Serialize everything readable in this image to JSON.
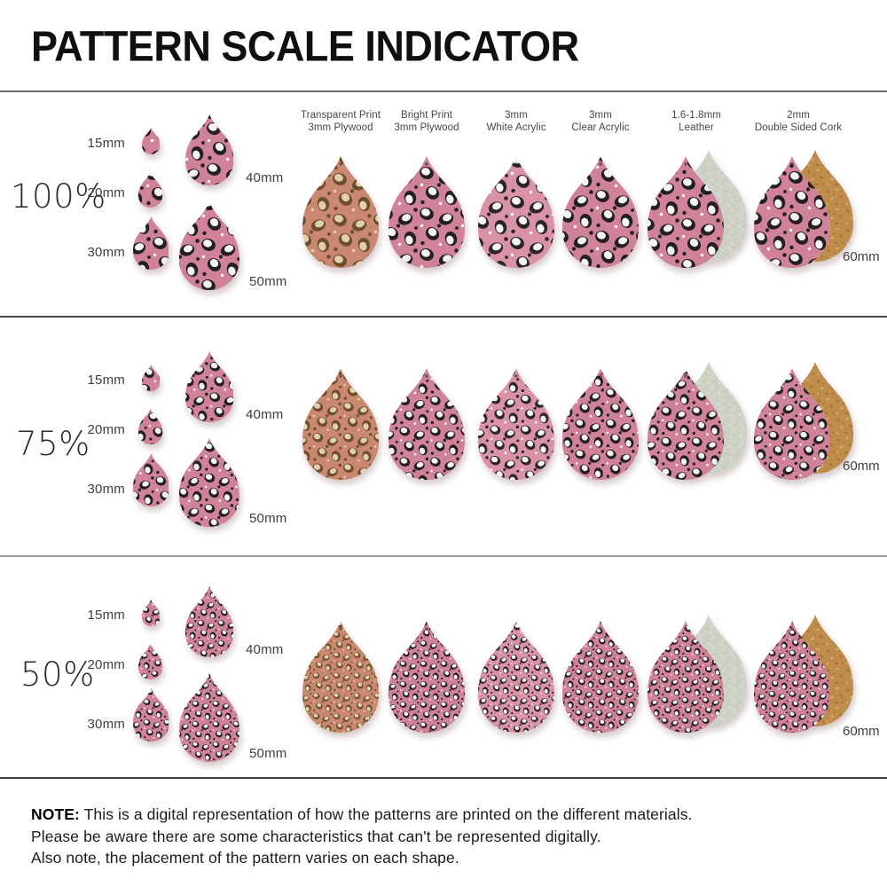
{
  "title": "PATTERN SCALE INDICATOR",
  "sections": [
    {
      "scale_label": "100%",
      "pattern_scale": 1
    },
    {
      "scale_label": "75%",
      "pattern_scale": 0.75
    },
    {
      "scale_label": "50%",
      "pattern_scale": 0.5
    }
  ],
  "size_samples": [
    {
      "label": "15mm",
      "mm": 15
    },
    {
      "label": "20mm",
      "mm": 20
    },
    {
      "label": "30mm",
      "mm": 30
    },
    {
      "label": "40mm",
      "mm": 40
    },
    {
      "label": "50mm",
      "mm": 50
    }
  ],
  "material_drop_size_label": "60mm",
  "material_columns": [
    {
      "label": [
        "Transparent Print",
        "3mm Plywood"
      ],
      "pattern": "wood",
      "backing": null
    },
    {
      "label": [
        "Bright Print",
        "3mm Plywood"
      ],
      "pattern": "pink",
      "backing": null
    },
    {
      "label": [
        "3mm",
        "White Acrylic"
      ],
      "pattern": "pinklight",
      "backing": null
    },
    {
      "label": [
        "3mm",
        "Clear Acrylic"
      ],
      "pattern": "pink",
      "backing": null
    },
    {
      "label": [
        "1.6-1.8mm",
        "Leather"
      ],
      "pattern": "pink",
      "backing": "leather"
    },
    {
      "label": [
        "2mm",
        "Double Sided Cork"
      ],
      "pattern": "pink",
      "backing": "cork"
    }
  ],
  "note": {
    "heading": "NOTE:",
    "lines": [
      "This is a digital representation of how the patterns are printed on the different materials.",
      "Please be aware there are some characteristics that can't be represented digitally.",
      "Also note, the placement of the pattern varies on each shape."
    ]
  },
  "colors": {
    "patterns": {
      "pink": {
        "bg": "#d08298",
        "dark": "#231f22",
        "light": "#f6f3f4"
      },
      "pinklight": {
        "bg": "#da93a6",
        "dark": "#2b2529",
        "light": "#f8f5f6"
      },
      "wood": {
        "bg": "#c9886f",
        "dark": "#6b4e2d",
        "light": "#e4cfab"
      }
    },
    "cork_base": "#bf8c4b",
    "cork_speck_dark": "#a87737",
    "cork_speck_light": "#d8b06a",
    "leather_base": "#ced2c6",
    "leather_speck_dark": "#bbbfb1",
    "leather_speck_light": "#e1e4da",
    "divider_dark": "#474747",
    "divider_light": "#9a9a9a",
    "text": "#2e2e2e"
  }
}
